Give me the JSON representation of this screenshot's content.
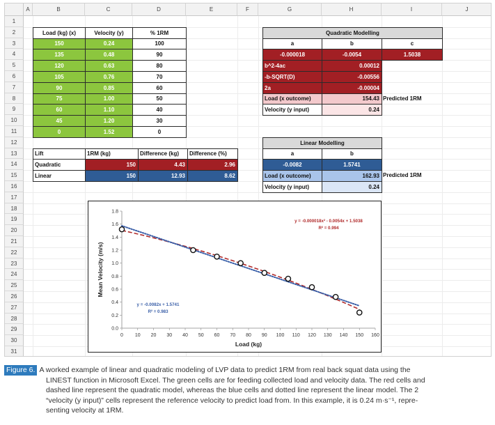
{
  "spreadsheet": {
    "columns": [
      "A",
      "B",
      "C",
      "D",
      "E",
      "F",
      "G",
      "H",
      "I",
      "J"
    ],
    "rows": [
      "1",
      "2",
      "3",
      "4",
      "5",
      "6",
      "7",
      "8",
      "9",
      "10",
      "11",
      "12",
      "13",
      "14",
      "15",
      "16",
      "17",
      "18",
      "19",
      "20",
      "21",
      "22",
      "23",
      "24",
      "25",
      "26",
      "27",
      "28",
      "29",
      "30",
      "31"
    ],
    "data_table": {
      "headers": [
        "Load (kg) (x)",
        "Velocity (y)",
        "% 1RM"
      ],
      "rows": [
        [
          "150",
          "0.24",
          "100"
        ],
        [
          "135",
          "0.48",
          "90"
        ],
        [
          "120",
          "0.63",
          "80"
        ],
        [
          "105",
          "0.76",
          "70"
        ],
        [
          "90",
          "0.85",
          "60"
        ],
        [
          "75",
          "1.00",
          "50"
        ],
        [
          "60",
          "1.10",
          "40"
        ],
        [
          "45",
          "1.20",
          "30"
        ],
        [
          "0",
          "1.52",
          "0"
        ]
      ]
    },
    "quadratic": {
      "title": "Quadratic Modelling",
      "coef_labels": [
        "a",
        "b",
        "c"
      ],
      "coef_values": [
        "-0.000018",
        "-0.0054",
        "1.5038"
      ],
      "calc_rows": [
        {
          "label": "b^2-4ac",
          "value": "0.00012"
        },
        {
          "label": "-b-SQRT(D)",
          "value": "-0.00556"
        },
        {
          "label": "2a",
          "value": "-0.00004"
        }
      ],
      "outcome_label": "Load (x outcome)",
      "outcome_value": "154.43",
      "predicted_label": "Predicted 1RM",
      "input_label": "Velocity (y input)",
      "input_value": "0.24"
    },
    "linear": {
      "title": "Linear Modelling",
      "coef_labels": [
        "a",
        "b"
      ],
      "coef_values": [
        "-0.0082",
        "1.5741"
      ],
      "outcome_label": "Load (x outcome)",
      "outcome_value": "162.93",
      "predicted_label": "Predicted 1RM",
      "input_label": "Velocity (y input)",
      "input_value": "0.24"
    },
    "comparison": {
      "headers": [
        "Lift",
        "1RM (kg)",
        "Difference (kg)",
        "Difference (%)"
      ],
      "rows": [
        {
          "name": "Quadratic",
          "rm": "150",
          "diff_kg": "4.43",
          "diff_pct": "2.96"
        },
        {
          "name": "Linear",
          "rm": "150",
          "diff_kg": "12.93",
          "diff_pct": "8.62"
        }
      ]
    }
  },
  "chart_data": {
    "type": "scatter",
    "xlabel": "Load (kg)",
    "ylabel": "Mean Velocity (m/s)",
    "xlim": [
      0,
      160
    ],
    "ylim": [
      0,
      1.8
    ],
    "xticks": [
      0,
      10,
      20,
      30,
      40,
      50,
      60,
      70,
      80,
      90,
      100,
      110,
      120,
      130,
      140,
      150,
      160
    ],
    "yticks": [
      "0.0",
      "0.2",
      "0.4",
      "0.6",
      "0.8",
      "1.0",
      "1.2",
      "1.4",
      "1.6",
      "1.8"
    ],
    "points": {
      "x": [
        0,
        45,
        60,
        75,
        90,
        105,
        120,
        135,
        150
      ],
      "y": [
        1.52,
        1.2,
        1.1,
        1.0,
        0.85,
        0.76,
        0.63,
        0.48,
        0.24
      ]
    },
    "quadratic_fit": {
      "a": -1.8e-05,
      "b": -0.0054,
      "c": 1.5038,
      "color": "#b02a2a",
      "style": "dashed"
    },
    "linear_fit": {
      "slope": -0.0082,
      "intercept": 1.5741,
      "color": "#3a5fa8",
      "style": "dotted"
    },
    "annotations": {
      "quad_eq": "y = -0.000018x² - 0.0054x + 1.5038",
      "quad_r2": "R² = 0.994",
      "lin_eq": "y = -0.0082x + 1.5741",
      "lin_r2": "R² = 0.983"
    }
  },
  "caption": {
    "label": "Figure 6.",
    "lines": [
      "A worked example of linear and quadratic modeling of LVP data to predict 1RM from real back squat data using the",
      "LINEST function in Microsoft Excel. The green cells are for feeding collected load and velocity data. The red cells and",
      "dashed line represent the quadratic model, whereas the blue cells and dotted line represent the linear model. The 2",
      "“velocity (y input)” cells represent the reference velocity to predict load from. In this example, it is 0.24 m·s⁻¹, repre-",
      "senting velocity at 1RM."
    ]
  }
}
